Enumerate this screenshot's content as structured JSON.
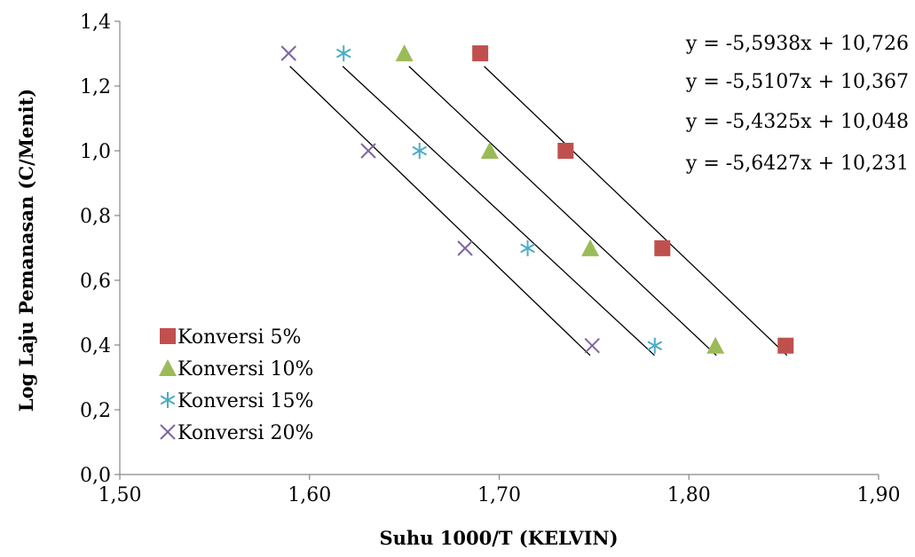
{
  "chart_data": {
    "type": "scatter",
    "xlabel": "Suhu 1000/T (KELVIN)",
    "ylabel": "Log Laju Pemanasan (C/Menit)",
    "xlim": [
      1.5,
      1.9
    ],
    "ylim": [
      0.0,
      1.4
    ],
    "x_ticks": [
      "1,50",
      "1,60",
      "1,70",
      "1,80",
      "1,90"
    ],
    "y_ticks": [
      "0,0",
      "0,2",
      "0,4",
      "0,6",
      "0,8",
      "1,0",
      "1,2",
      "1,4"
    ],
    "grid": false,
    "legend_position": "bottom-left",
    "series": [
      {
        "name": "Konversi 5%",
        "marker": "square",
        "color": "#C0504D",
        "points": [
          [
            1.69,
            1.301
          ],
          [
            1.735,
            1.0
          ],
          [
            1.786,
            0.699
          ],
          [
            1.851,
            0.398
          ]
        ],
        "trendline": {
          "slope": -5.5938,
          "intercept": 10.726,
          "equation": "y = -5,5938x + 10,726"
        }
      },
      {
        "name": "Konversi 10%",
        "marker": "triangle",
        "color": "#9BBB59",
        "points": [
          [
            1.65,
            1.301
          ],
          [
            1.695,
            1.0
          ],
          [
            1.748,
            0.699
          ],
          [
            1.814,
            0.398
          ]
        ],
        "trendline": {
          "slope": -5.5107,
          "intercept": 10.367,
          "equation": "y = -5,5107x + 10,367"
        }
      },
      {
        "name": "Konversi 15%",
        "marker": "asterisk",
        "color": "#4BACC6",
        "points": [
          [
            1.618,
            1.301
          ],
          [
            1.658,
            1.0
          ],
          [
            1.715,
            0.699
          ],
          [
            1.782,
            0.398
          ]
        ],
        "trendline": {
          "slope": -5.4325,
          "intercept": 10.048,
          "equation": "y = -5,4325x + 10,048"
        }
      },
      {
        "name": "Konversi 20%",
        "marker": "x",
        "color": "#8064A2",
        "points": [
          [
            1.589,
            1.301
          ],
          [
            1.631,
            1.0
          ],
          [
            1.682,
            0.699
          ],
          [
            1.749,
            0.398
          ]
        ],
        "trendline": {
          "slope": -5.6427,
          "intercept": 10.231,
          "equation": "y = -5,6427x + 10,231"
        }
      }
    ]
  }
}
